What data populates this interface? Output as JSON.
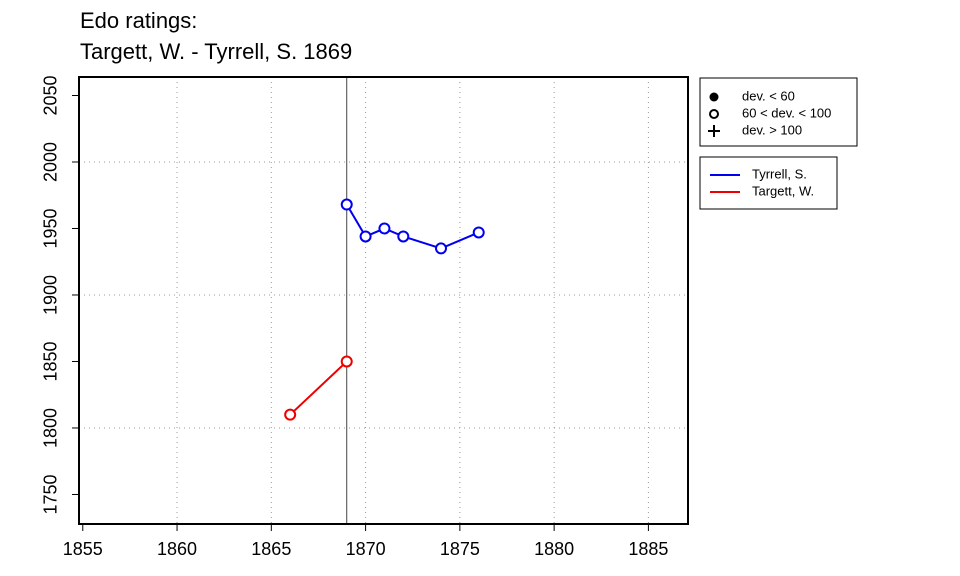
{
  "chart_data": {
    "type": "line",
    "title": "Edo ratings:",
    "subtitle": "Targett, W. - Tyrrell, S. 1869",
    "xlim": [
      1854.8,
      1887.1
    ],
    "ylim": [
      1727.8,
      2063.9
    ],
    "xticks": [
      1855,
      1860,
      1865,
      1870,
      1875,
      1880,
      1885
    ],
    "yticks": [
      1750,
      1800,
      1850,
      1900,
      1950,
      2000,
      2050
    ],
    "xgrid": [
      1860,
      1865,
      1870,
      1875,
      1880,
      1885
    ],
    "ygrid": [
      1800,
      1900,
      2000
    ],
    "event_x": 1869,
    "deviation_legend": [
      "dev. < 60",
      "60 < dev. < 100",
      "dev. > 100"
    ],
    "series": [
      {
        "name": "Tyrrell, S.",
        "color": "#0000ee",
        "x": [
          1869,
          1870,
          1871,
          1872,
          1874,
          1876
        ],
        "values": [
          1968,
          1944,
          1950,
          1944,
          1935,
          1947
        ]
      },
      {
        "name": "Targett, W.",
        "color": "#ee0000",
        "x": [
          1866,
          1869
        ],
        "values": [
          1810,
          1850
        ]
      }
    ]
  }
}
